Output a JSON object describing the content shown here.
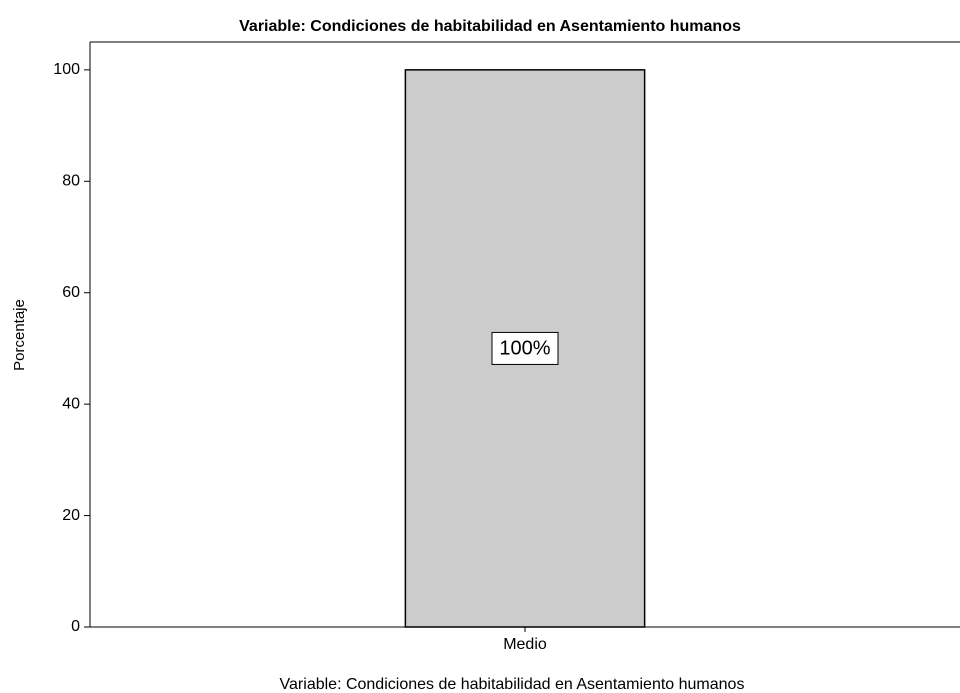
{
  "chart_data": {
    "type": "bar",
    "title": "Variable:  Condiciones de habitabilidad en Asentamiento humanos",
    "x_label": "Variable:  Condiciones de habitabilidad en Asentamiento humanos",
    "y_label": "Porcentaje",
    "categories": [
      "Medio"
    ],
    "values": [
      100
    ],
    "value_labels": [
      "100%"
    ],
    "color": "#cccccc",
    "ylim": [
      0,
      105
    ],
    "yticks": [
      0,
      20,
      40,
      60,
      80,
      100
    ],
    "grid": false
  }
}
